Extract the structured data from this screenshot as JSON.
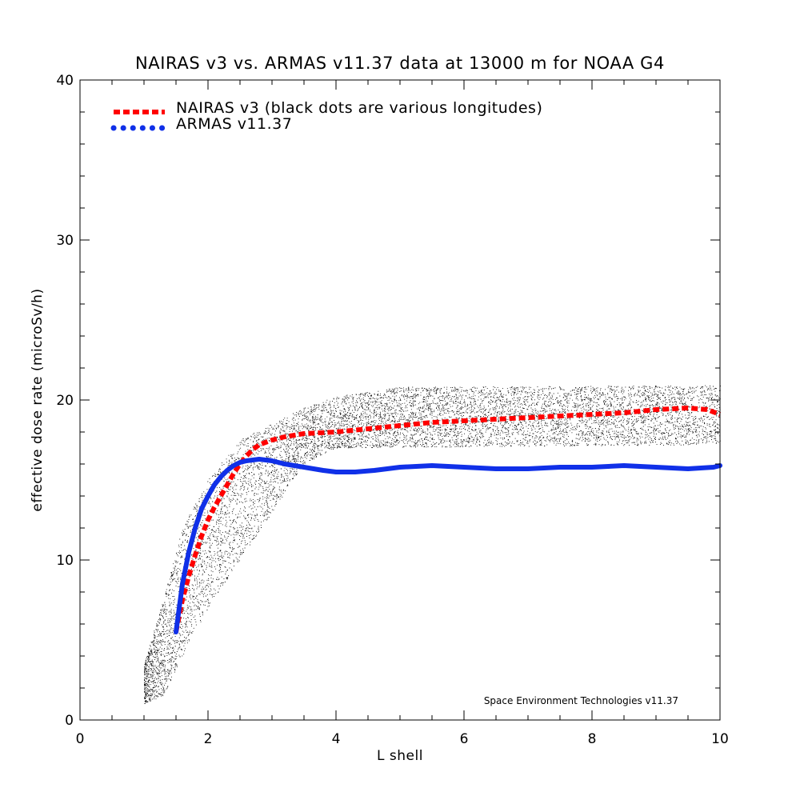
{
  "chart_data": {
    "type": "line",
    "title": "NAIRAS  v3 vs. ARMAS v11.37 data at 13000 m for NOAA G4",
    "xlabel": "L shell",
    "ylabel": "effective dose rate (microSv/h)",
    "xlim": [
      0,
      10
    ],
    "ylim": [
      0,
      40
    ],
    "xticks": [
      0,
      2,
      4,
      6,
      8,
      10
    ],
    "yticks": [
      0,
      10,
      20,
      30,
      40
    ],
    "x_minor_step": 0.5,
    "y_minor_step": 2,
    "grid": false,
    "legend_position": "top-left",
    "credit": "Space Environment Technologies v11.37",
    "series": [
      {
        "name": "NAIRAS v3 (black dots are various longitudes)",
        "color": "#ff0000",
        "style": "dashed",
        "x": [
          1.5,
          1.6,
          1.7,
          1.8,
          1.9,
          2.0,
          2.1,
          2.2,
          2.3,
          2.4,
          2.5,
          2.6,
          2.7,
          2.8,
          3.0,
          3.2,
          3.5,
          4.0,
          4.5,
          5.0,
          5.5,
          6.0,
          6.5,
          7.0,
          7.5,
          8.0,
          8.5,
          9.0,
          9.5,
          9.8,
          10.0
        ],
        "y": [
          5.5,
          7.5,
          9.0,
          10.3,
          11.5,
          12.5,
          13.3,
          14.0,
          14.7,
          15.4,
          16.0,
          16.5,
          16.9,
          17.2,
          17.5,
          17.7,
          17.9,
          18.0,
          18.2,
          18.4,
          18.6,
          18.7,
          18.8,
          18.9,
          19.0,
          19.1,
          19.2,
          19.4,
          19.5,
          19.4,
          19.1
        ]
      },
      {
        "name": "ARMAS v11.37",
        "color": "#1030e8",
        "style": "dotted",
        "x": [
          1.5,
          1.6,
          1.7,
          1.8,
          1.9,
          2.0,
          2.1,
          2.2,
          2.3,
          2.4,
          2.5,
          2.6,
          2.8,
          3.0,
          3.2,
          3.5,
          3.8,
          4.0,
          4.3,
          4.6,
          5.0,
          5.5,
          6.0,
          6.5,
          7.0,
          7.5,
          8.0,
          8.5,
          9.0,
          9.5,
          9.9,
          10.0
        ],
        "y": [
          5.5,
          8.5,
          10.5,
          12.0,
          13.2,
          14.0,
          14.7,
          15.2,
          15.6,
          15.9,
          16.1,
          16.2,
          16.3,
          16.2,
          16.0,
          15.8,
          15.6,
          15.5,
          15.5,
          15.6,
          15.8,
          15.9,
          15.8,
          15.7,
          15.7,
          15.8,
          15.8,
          15.9,
          15.8,
          15.7,
          15.8,
          15.9
        ]
      }
    ]
  }
}
